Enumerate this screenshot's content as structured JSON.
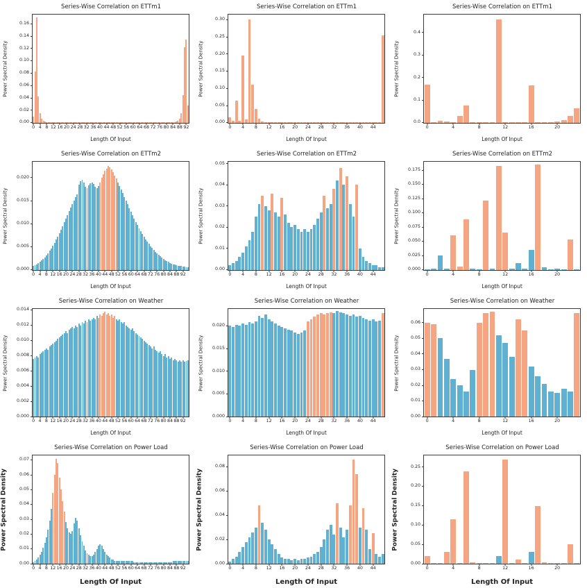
{
  "figure": {
    "rows": 4,
    "cols": 3,
    "background": "#ffffff",
    "palette": {
      "blue": "#5fb0d1",
      "orange": "#f5a582"
    },
    "frame_color": "#3a3a3a",
    "text_color": "#1a1a1a"
  },
  "chart_data": [
    {
      "type": "bar",
      "title": "Series-Wise Correlation on ETTm1",
      "xlabel": "Length Of Input",
      "ylabel": "Power Spectral Density",
      "ylim": [
        0,
        0.175
      ],
      "y_ticks": [
        "0.00",
        "0.02",
        "0.04",
        "0.06",
        "0.08",
        "0.10",
        "0.12",
        "0.14",
        "0.16"
      ],
      "x_ticks": [
        0,
        4,
        8,
        12,
        16,
        20,
        24,
        28,
        32,
        36,
        40,
        44,
        48,
        52,
        56,
        60,
        64,
        68,
        72,
        76,
        80,
        84,
        88,
        92
      ],
      "default_color": "orange",
      "blue_indices": [],
      "values": [
        0.01,
        0.083,
        0.17,
        0.042,
        0.015,
        0.006,
        0.003,
        0.002,
        0.001,
        0.001,
        0.001,
        0.001,
        0.001,
        0.001,
        0.001,
        0.001,
        0.001,
        0.001,
        0.001,
        0.001,
        0.001,
        0.001,
        0.001,
        0.001,
        0.001,
        0.001,
        0.001,
        0.001,
        0.001,
        0.001,
        0.001,
        0.001,
        0.001,
        0.001,
        0.001,
        0.001,
        0.001,
        0.001,
        0.001,
        0.001,
        0.001,
        0.001,
        0.001,
        0.001,
        0.001,
        0.001,
        0.001,
        0.001,
        0.001,
        0.001,
        0.001,
        0.001,
        0.001,
        0.001,
        0.001,
        0.001,
        0.001,
        0.001,
        0.001,
        0.001,
        0.001,
        0.001,
        0.001,
        0.001,
        0.001,
        0.001,
        0.001,
        0.001,
        0.001,
        0.001,
        0.001,
        0.001,
        0.001,
        0.001,
        0.001,
        0.001,
        0.001,
        0.001,
        0.001,
        0.001,
        0.001,
        0.001,
        0.001,
        0.001,
        0.001,
        0.001,
        0.002,
        0.003,
        0.006,
        0.015,
        0.045,
        0.122,
        0.135,
        0.028
      ]
    },
    {
      "type": "bar",
      "title": "Series-Wise Correlation on ETTm1",
      "xlabel": "Length Of Input",
      "ylabel": "Power Spectral Density",
      "ylim": [
        0,
        0.315
      ],
      "y_ticks": [
        "0.00",
        "0.05",
        "0.10",
        "0.15",
        "0.20",
        "0.25",
        "0.30"
      ],
      "x_ticks": [
        0,
        4,
        8,
        12,
        16,
        20,
        24,
        28,
        32,
        36,
        40,
        44
      ],
      "default_color": "orange",
      "blue_indices": [],
      "values": [
        0.015,
        0.005,
        0.065,
        0.006,
        0.195,
        0.01,
        0.3,
        0.11,
        0.04,
        0.012,
        0.003,
        0.002,
        0.001,
        0.001,
        0.001,
        0.001,
        0.001,
        0.001,
        0.001,
        0.001,
        0.001,
        0.001,
        0.001,
        0.001,
        0.001,
        0.001,
        0.001,
        0.001,
        0.001,
        0.001,
        0.001,
        0.001,
        0.001,
        0.001,
        0.001,
        0.001,
        0.001,
        0.001,
        0.001,
        0.001,
        0.001,
        0.001,
        0.001,
        0.001,
        0.001,
        0.001,
        0.001,
        0.255
      ]
    },
    {
      "type": "bar",
      "title": "Series-Wise Correlation on ETTm1",
      "xlabel": "Length Of Input",
      "ylabel": "Power Spectral Density",
      "ylim": [
        0,
        0.48
      ],
      "y_ticks": [
        "0.0",
        "0.1",
        "0.2",
        "0.3",
        "0.4"
      ],
      "x_ticks": [
        0,
        4,
        8,
        12,
        16,
        20
      ],
      "default_color": "orange",
      "blue_indices": [],
      "values": [
        0.17,
        0.003,
        0.01,
        0.006,
        0.002,
        0.03,
        0.075,
        0.002,
        0.001,
        0.002,
        0.001,
        0.46,
        0.003,
        0.002,
        0.001,
        0.002,
        0.165,
        0.002,
        0.001,
        0.002,
        0.006,
        0.012,
        0.03,
        0.065
      ]
    },
    {
      "type": "bar",
      "title": "Series-Wise Correlation on ETTm2",
      "xlabel": "Length Of Input",
      "ylabel": "Power Spectral Density",
      "ylim": [
        0,
        0.0235
      ],
      "y_ticks": [
        "0.000",
        "0.005",
        "0.010",
        "0.015",
        "0.020"
      ],
      "x_ticks": [
        0,
        4,
        8,
        12,
        16,
        20,
        24,
        28,
        32,
        36,
        40,
        44,
        48,
        52,
        56,
        60,
        64,
        68,
        72,
        76,
        80,
        84,
        88,
        92
      ],
      "default_color": "blue",
      "orange_indices": [
        41,
        42,
        43,
        44,
        45,
        46,
        47,
        48,
        49,
        50,
        51
      ],
      "values": [
        0.0008,
        0.001,
        0.0012,
        0.0014,
        0.0017,
        0.002,
        0.0023,
        0.0027,
        0.0031,
        0.0036,
        0.0041,
        0.0046,
        0.0052,
        0.0058,
        0.0065,
        0.0072,
        0.0079,
        0.0087,
        0.0095,
        0.0103,
        0.0111,
        0.0119,
        0.0127,
        0.0135,
        0.0143,
        0.015,
        0.0157,
        0.0163,
        0.0185,
        0.0192,
        0.0196,
        0.019,
        0.018,
        0.0178,
        0.0183,
        0.0188,
        0.019,
        0.0186,
        0.018,
        0.0178,
        0.0182,
        0.019,
        0.02,
        0.0208,
        0.0215,
        0.022,
        0.0225,
        0.0222,
        0.0218,
        0.0212,
        0.0205,
        0.0198,
        0.019,
        0.0182,
        0.0174,
        0.0166,
        0.0158,
        0.015,
        0.0142,
        0.0134,
        0.0126,
        0.0118,
        0.0111,
        0.0104,
        0.0097,
        0.009,
        0.0084,
        0.0078,
        0.0072,
        0.0066,
        0.0061,
        0.0056,
        0.0051,
        0.0047,
        0.0043,
        0.0039,
        0.0035,
        0.0032,
        0.0029,
        0.0026,
        0.0023,
        0.0021,
        0.0019,
        0.0017,
        0.0015,
        0.0013,
        0.0012,
        0.0011,
        0.001,
        0.0009,
        0.0008,
        0.0008,
        0.0007,
        0.0007,
        0.0006,
        0.0006
      ]
    },
    {
      "type": "bar",
      "title": "Series-Wise Correlation on ETTm2",
      "xlabel": "Length Of Input",
      "ylabel": "Power Spectral Density",
      "ylim": [
        0,
        0.051
      ],
      "y_ticks": [
        "0.00",
        "0.01",
        "0.02",
        "0.03",
        "0.04",
        "0.05"
      ],
      "x_ticks": [
        0,
        4,
        8,
        12,
        16,
        20,
        24,
        28,
        32,
        36,
        40,
        44
      ],
      "default_color": "blue",
      "orange_indices": [
        10,
        13,
        16,
        29,
        32,
        34,
        36,
        39
      ],
      "values": [
        0.002,
        0.003,
        0.004,
        0.006,
        0.008,
        0.011,
        0.014,
        0.018,
        0.025,
        0.031,
        0.035,
        0.03,
        0.028,
        0.036,
        0.027,
        0.025,
        0.034,
        0.026,
        0.022,
        0.02,
        0.021,
        0.019,
        0.018,
        0.019,
        0.018,
        0.019,
        0.021,
        0.024,
        0.027,
        0.035,
        0.029,
        0.031,
        0.038,
        0.042,
        0.048,
        0.04,
        0.044,
        0.031,
        0.025,
        0.04,
        0.01,
        0.006,
        0.004,
        0.003,
        0.002,
        0.002,
        0.001,
        0.001
      ]
    },
    {
      "type": "bar",
      "title": "Series-Wise Correlation on ETTm2",
      "xlabel": "Length Of Input",
      "ylabel": "Power Spectral Density",
      "ylim": [
        0,
        0.19
      ],
      "y_ticks": [
        "0.000",
        "0.025",
        "0.050",
        "0.075",
        "0.100",
        "0.125",
        "0.150",
        "0.175"
      ],
      "x_ticks": [
        0,
        4,
        8,
        12,
        16,
        20
      ],
      "default_color": "blue",
      "orange_indices": [
        4,
        5,
        6,
        9,
        11,
        12,
        17,
        22
      ],
      "values": [
        0.001,
        0.002,
        0.025,
        0.002,
        0.06,
        0.005,
        0.088,
        0.002,
        0.001,
        0.122,
        0.002,
        0.182,
        0.065,
        0.002,
        0.012,
        0.002,
        0.035,
        0.185,
        0.004,
        0.001,
        0.002,
        0.001,
        0.053,
        0.001
      ]
    },
    {
      "type": "bar",
      "title": "Series-Wise Correlation on Weather",
      "xlabel": "Length Of Input",
      "ylabel": "Power Spectral Density",
      "ylim": [
        0,
        0.0142
      ],
      "y_ticks": [
        "0.000",
        "0.002",
        "0.004",
        "0.006",
        "0.008",
        "0.010",
        "0.012",
        "0.014"
      ],
      "x_ticks": [
        0,
        4,
        8,
        12,
        16,
        20,
        24,
        28,
        32,
        36,
        40,
        44,
        48,
        52,
        56,
        60,
        64,
        68,
        72,
        76,
        80,
        84,
        88,
        92
      ],
      "default_color": "blue",
      "orange_indices": [
        40,
        41,
        42,
        43,
        44,
        45,
        46,
        47,
        48,
        49,
        50
      ],
      "values": [
        0.0076,
        0.0078,
        0.008,
        0.0078,
        0.0082,
        0.0084,
        0.0086,
        0.0088,
        0.009,
        0.0088,
        0.0092,
        0.0094,
        0.0096,
        0.0098,
        0.01,
        0.0102,
        0.0104,
        0.0106,
        0.0108,
        0.011,
        0.0112,
        0.011,
        0.0114,
        0.0116,
        0.0118,
        0.0116,
        0.012,
        0.0118,
        0.0122,
        0.012,
        0.0124,
        0.0122,
        0.0126,
        0.0124,
        0.0128,
        0.0126,
        0.0128,
        0.013,
        0.0128,
        0.0132,
        0.013,
        0.0134,
        0.0132,
        0.0136,
        0.0138,
        0.0134,
        0.0136,
        0.0132,
        0.0134,
        0.013,
        0.0132,
        0.0128,
        0.0126,
        0.0128,
        0.0124,
        0.0122,
        0.0124,
        0.012,
        0.0118,
        0.0116,
        0.0114,
        0.0116,
        0.0112,
        0.011,
        0.0108,
        0.0106,
        0.0104,
        0.0102,
        0.01,
        0.0098,
        0.0096,
        0.0094,
        0.0092,
        0.009,
        0.0092,
        0.0088,
        0.0086,
        0.0084,
        0.0086,
        0.0082,
        0.008,
        0.0082,
        0.0078,
        0.008,
        0.0076,
        0.0078,
        0.0074,
        0.0076,
        0.0074,
        0.0072,
        0.0074,
        0.0072,
        0.0074,
        0.0072,
        0.0073,
        0.0074
      ]
    },
    {
      "type": "bar",
      "title": "Series-Wise Correlation on Weather",
      "xlabel": "Length Of Input",
      "ylabel": "Power Spectral Density",
      "ylim": [
        0,
        0.0238
      ],
      "y_ticks": [
        "0.000",
        "0.005",
        "0.010",
        "0.015",
        "0.020"
      ],
      "x_ticks": [
        0,
        4,
        8,
        12,
        16,
        20,
        24,
        28,
        32,
        36,
        40,
        44
      ],
      "default_color": "blue",
      "orange_indices": [
        24,
        25,
        26,
        27,
        28,
        29,
        30,
        31,
        47
      ],
      "values": [
        0.02,
        0.0198,
        0.0202,
        0.02,
        0.0205,
        0.0202,
        0.0208,
        0.0205,
        0.021,
        0.0222,
        0.0218,
        0.0225,
        0.0215,
        0.021,
        0.0205,
        0.02,
        0.0198,
        0.0195,
        0.0192,
        0.019,
        0.0185,
        0.0182,
        0.0185,
        0.019,
        0.021,
        0.0215,
        0.022,
        0.0225,
        0.0228,
        0.0225,
        0.0228,
        0.023,
        0.0228,
        0.0232,
        0.023,
        0.0228,
        0.0225,
        0.0222,
        0.0225,
        0.022,
        0.0222,
        0.0218,
        0.0215,
        0.0212,
        0.0215,
        0.021,
        0.0212,
        0.0228
      ]
    },
    {
      "type": "bar",
      "title": "Series-Wise Correlation on Weather",
      "xlabel": "Length Of Input",
      "ylabel": "Power Spectral Density",
      "ylim": [
        0,
        0.069
      ],
      "y_ticks": [
        "0.00",
        "0.01",
        "0.02",
        "0.03",
        "0.04",
        "0.05",
        "0.06"
      ],
      "x_ticks": [
        0,
        4,
        8,
        12,
        16,
        20
      ],
      "default_color": "blue",
      "orange_indices": [
        0,
        1,
        8,
        9,
        10,
        14,
        15,
        23
      ],
      "values": [
        0.06,
        0.059,
        0.05,
        0.037,
        0.024,
        0.02,
        0.016,
        0.03,
        0.06,
        0.066,
        0.067,
        0.052,
        0.047,
        0.038,
        0.062,
        0.055,
        0.032,
        0.026,
        0.021,
        0.016,
        0.015,
        0.018,
        0.016,
        0.066
      ]
    },
    {
      "type": "bar",
      "title": "Series-Wise Correlation on Power Load",
      "xlabel": "Length Of Input",
      "ylabel": "Power Spectral Density",
      "ylim": [
        0,
        0.073
      ],
      "y_ticks": [
        "0.00",
        "0.01",
        "0.02",
        "0.03",
        "0.04",
        "0.05",
        "0.06",
        "0.07"
      ],
      "x_ticks": [
        0,
        4,
        8,
        12,
        16,
        20,
        24,
        28,
        32,
        36,
        40,
        44,
        48,
        52,
        56,
        60,
        64,
        68,
        72,
        76,
        80,
        84,
        88,
        92
      ],
      "default_color": "blue",
      "orange_indices": [
        12,
        13,
        14,
        15,
        16,
        17,
        18,
        19
      ],
      "values": [
        0.001,
        0.002,
        0.003,
        0.004,
        0.006,
        0.008,
        0.011,
        0.014,
        0.018,
        0.023,
        0.029,
        0.037,
        0.048,
        0.06,
        0.071,
        0.068,
        0.058,
        0.05,
        0.042,
        0.035,
        0.028,
        0.024,
        0.021,
        0.02,
        0.022,
        0.027,
        0.031,
        0.029,
        0.024,
        0.019,
        0.015,
        0.012,
        0.009,
        0.007,
        0.006,
        0.005,
        0.005,
        0.006,
        0.008,
        0.01,
        0.012,
        0.013,
        0.012,
        0.01,
        0.008,
        0.006,
        0.005,
        0.004,
        0.003,
        0.003,
        0.002,
        0.002,
        0.002,
        0.002,
        0.002,
        0.002,
        0.002,
        0.002,
        0.002,
        0.002,
        0.002,
        0.002,
        0.001,
        0.001,
        0.001,
        0.001,
        0.001,
        0.001,
        0.001,
        0.001,
        0.001,
        0.001,
        0.001,
        0.001,
        0.001,
        0.001,
        0.001,
        0.001,
        0.001,
        0.001,
        0.001,
        0.001,
        0.001,
        0.001,
        0.001,
        0.001,
        0.002,
        0.002,
        0.002,
        0.002,
        0.002,
        0.002,
        0.002,
        0.002,
        0.002,
        0.002
      ]
    },
    {
      "type": "bar",
      "title": "Series-Wise Correlation on Power Load",
      "xlabel": "Length Of Input",
      "ylabel": "Power Spectral Density",
      "ylim": [
        0,
        0.089
      ],
      "y_ticks": [
        "0.00",
        "0.02",
        "0.04",
        "0.06",
        "0.08"
      ],
      "x_ticks": [
        0,
        4,
        8,
        12,
        16,
        20,
        24,
        28,
        32,
        36,
        40,
        44
      ],
      "default_color": "blue",
      "orange_indices": [
        9,
        33,
        37,
        38,
        39,
        41,
        44
      ],
      "values": [
        0.002,
        0.004,
        0.006,
        0.01,
        0.014,
        0.018,
        0.022,
        0.026,
        0.03,
        0.048,
        0.034,
        0.028,
        0.02,
        0.016,
        0.012,
        0.008,
        0.005,
        0.004,
        0.004,
        0.003,
        0.004,
        0.003,
        0.004,
        0.004,
        0.005,
        0.006,
        0.008,
        0.01,
        0.014,
        0.02,
        0.028,
        0.032,
        0.024,
        0.05,
        0.03,
        0.022,
        0.028,
        0.048,
        0.086,
        0.074,
        0.03,
        0.046,
        0.028,
        0.012,
        0.025,
        0.008,
        0.006,
        0.008
      ]
    },
    {
      "type": "bar",
      "title": "Series-Wise Correlation on Power Load",
      "xlabel": "Length Of Input",
      "ylabel": "Power Spectral Density",
      "ylim": [
        0,
        0.28
      ],
      "y_ticks": [
        "0.00",
        "0.05",
        "0.10",
        "0.15",
        "0.20",
        "0.25"
      ],
      "x_ticks": [
        0,
        4,
        8,
        12,
        16,
        20
      ],
      "default_color": "orange",
      "blue_indices": [
        11,
        16
      ],
      "values": [
        0.02,
        0.002,
        0.001,
        0.03,
        0.115,
        0.002,
        0.24,
        0.003,
        0.002,
        0.001,
        0.002,
        0.02,
        0.27,
        0.002,
        0.01,
        0.002,
        0.03,
        0.15,
        0.003,
        0.001,
        0.002,
        0.001,
        0.05,
        0.001
      ]
    }
  ]
}
